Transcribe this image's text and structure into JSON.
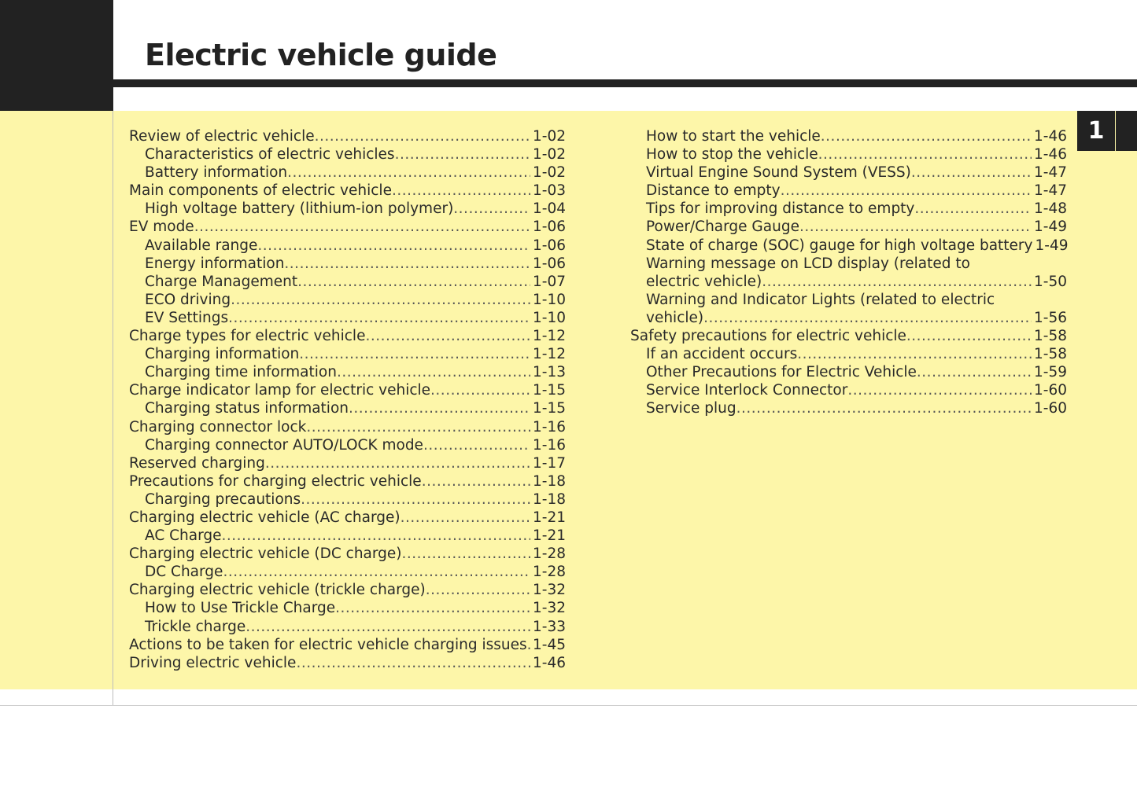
{
  "title": "Electric vehicle guide",
  "chapter_tab": "1",
  "left_column": [
    {
      "text": "Review of electric vehicle",
      "page": "1-02",
      "level": 0
    },
    {
      "text": "Characteristics of electric vehicles",
      "page": "1-02",
      "level": 1
    },
    {
      "text": "Battery information",
      "page": "1-02",
      "level": 1
    },
    {
      "text": "Main components of electric vehicle",
      "page": "1-03",
      "level": 0
    },
    {
      "text": "High voltage battery (lithium-ion polymer)",
      "page": "1-04",
      "level": 1
    },
    {
      "text": "EV mode",
      "page": "1-06",
      "level": 0
    },
    {
      "text": "Available range",
      "page": "1-06",
      "level": 1
    },
    {
      "text": "Energy information",
      "page": "1-06",
      "level": 1
    },
    {
      "text": "Charge Management",
      "page": "1-07",
      "level": 1
    },
    {
      "text": "ECO driving",
      "page": "1-10",
      "level": 1
    },
    {
      "text": "EV Settings",
      "page": "1-10",
      "level": 1
    },
    {
      "text": "Charge types for electric vehicle",
      "page": "1-12",
      "level": 0
    },
    {
      "text": "Charging information",
      "page": "1-12",
      "level": 1
    },
    {
      "text": "Charging time information",
      "page": "1-13",
      "level": 1
    },
    {
      "text": "Charge indicator lamp for electric vehicle",
      "page": "1-15",
      "level": 0
    },
    {
      "text": "Charging status information",
      "page": "1-15",
      "level": 1
    },
    {
      "text": "Charging connector lock",
      "page": "1-16",
      "level": 0
    },
    {
      "text": "Charging connector AUTO/LOCK mode",
      "page": "1-16",
      "level": 1
    },
    {
      "text": "Reserved charging",
      "page": "1-17",
      "level": 0
    },
    {
      "text": "Precautions for charging electric vehicle",
      "page": "1-18",
      "level": 0
    },
    {
      "text": "Charging precautions",
      "page": "1-18",
      "level": 1
    },
    {
      "text": "Charging electric vehicle (AC charge)",
      "page": "1-21",
      "level": 0
    },
    {
      "text": "AC Charge",
      "page": "1-21",
      "level": 1
    },
    {
      "text": "Charging electric vehicle (DC charge)",
      "page": "1-28",
      "level": 0
    },
    {
      "text": "DC Charge",
      "page": "1-28",
      "level": 1
    },
    {
      "text": "Charging electric vehicle (trickle charge)",
      "page": "1-32",
      "level": 0
    },
    {
      "text": "How to Use Trickle Charge",
      "page": "1-32",
      "level": 1
    },
    {
      "text": "Trickle charge",
      "page": "1-33",
      "level": 1
    },
    {
      "text": "Actions to be taken for electric vehicle charging issues",
      "page": "1-45",
      "level": 0
    },
    {
      "text": "Driving electric vehicle",
      "page": "1-46",
      "level": 0
    }
  ],
  "right_column": [
    {
      "text": "How to start the vehicle",
      "page": "1-46",
      "level": 1
    },
    {
      "text": "How to stop the vehicle",
      "page": "1-46",
      "level": 1
    },
    {
      "text": "Virtual Engine Sound System (VESS)",
      "page": "1-47",
      "level": 1
    },
    {
      "text": "Distance to empty",
      "page": "1-47",
      "level": 1
    },
    {
      "text": "Tips for improving distance to empty",
      "page": "1-48",
      "level": 1
    },
    {
      "text": "Power/Charge Gauge",
      "page": "1-49",
      "level": 1
    },
    {
      "text": "State of charge (SOC) gauge for high voltage battery",
      "page": "1-49",
      "level": 1
    },
    {
      "text": "Warning message on LCD display (related to",
      "page": "",
      "level": 1
    },
    {
      "text": "electric vehicle)",
      "page": "1-50",
      "level": 1
    },
    {
      "text": "Warning and Indicator Lights (related to electric",
      "page": "",
      "level": 1
    },
    {
      "text": "vehicle)",
      "page": "1-56",
      "level": 1
    },
    {
      "text": "Safety precautions for electric vehicle",
      "page": "1-58",
      "level": 0
    },
    {
      "text": "If an accident occurs",
      "page": "1-58",
      "level": 1
    },
    {
      "text": "Other Precautions for Electric Vehicle",
      "page": "1-59",
      "level": 1
    },
    {
      "text": "Service Interlock Connector",
      "page": "1-60",
      "level": 1
    },
    {
      "text": "Service plug",
      "page": "1-60",
      "level": 1
    }
  ]
}
